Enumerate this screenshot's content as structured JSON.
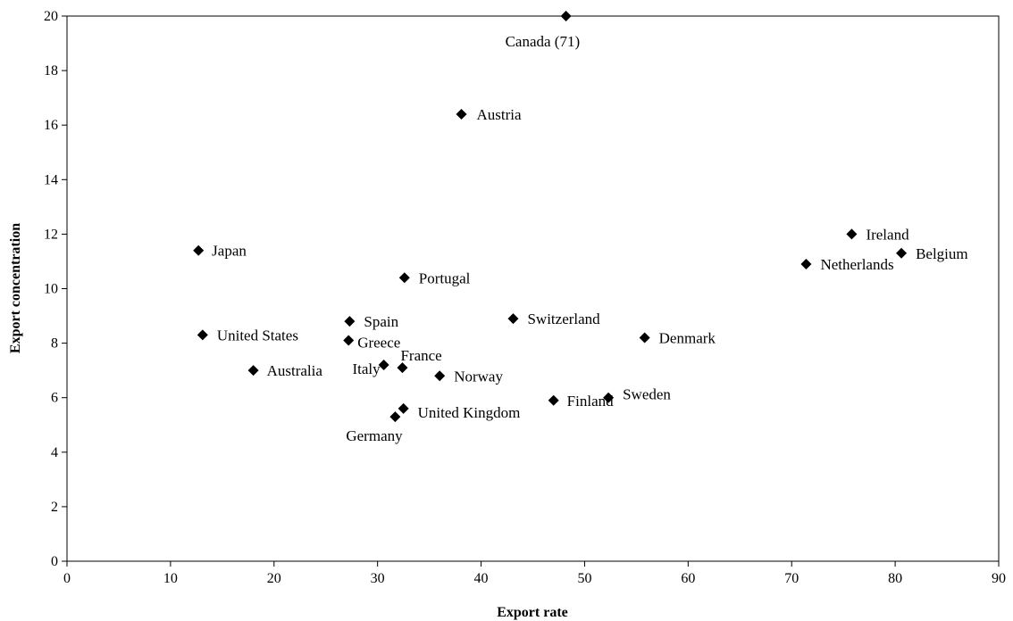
{
  "chart_data": {
    "type": "scatter",
    "xlabel": "Export rate",
    "ylabel": "Export concentration",
    "xlim": [
      0,
      90
    ],
    "ylim": [
      0,
      20
    ],
    "x_ticks": [
      0,
      10,
      20,
      30,
      40,
      50,
      60,
      70,
      80,
      90
    ],
    "y_ticks": [
      0,
      2,
      4,
      6,
      8,
      10,
      12,
      14,
      16,
      18,
      20
    ],
    "grid": false,
    "marker": "diamond",
    "marker_color": "#000000",
    "points": [
      {
        "label": "Canada (71)",
        "x": 48.2,
        "y": 20.0
      },
      {
        "label": "Austria",
        "x": 38.1,
        "y": 16.4
      },
      {
        "label": "Japan",
        "x": 12.7,
        "y": 11.4
      },
      {
        "label": "Ireland",
        "x": 75.8,
        "y": 12.0
      },
      {
        "label": "Belgium",
        "x": 80.6,
        "y": 11.3
      },
      {
        "label": "Netherlands",
        "x": 71.4,
        "y": 10.9
      },
      {
        "label": "Portugal",
        "x": 32.6,
        "y": 10.4
      },
      {
        "label": "Spain",
        "x": 27.3,
        "y": 8.8
      },
      {
        "label": "Switzerland",
        "x": 43.1,
        "y": 8.9
      },
      {
        "label": "United States",
        "x": 13.1,
        "y": 8.3
      },
      {
        "label": "Greece",
        "x": 27.2,
        "y": 8.1
      },
      {
        "label": "Denmark",
        "x": 55.8,
        "y": 8.2
      },
      {
        "label": "Australia",
        "x": 18.0,
        "y": 7.0
      },
      {
        "label": "Italy",
        "x": 30.6,
        "y": 7.2
      },
      {
        "label": "France",
        "x": 32.4,
        "y": 7.1
      },
      {
        "label": "Norway",
        "x": 36.0,
        "y": 6.8
      },
      {
        "label": "Finland",
        "x": 47.0,
        "y": 5.9
      },
      {
        "label": "Sweden",
        "x": 52.3,
        "y": 6.0
      },
      {
        "label": "United Kingdom",
        "x": 32.5,
        "y": 5.6
      },
      {
        "label": "Germany",
        "x": 31.7,
        "y": 5.3
      }
    ]
  }
}
